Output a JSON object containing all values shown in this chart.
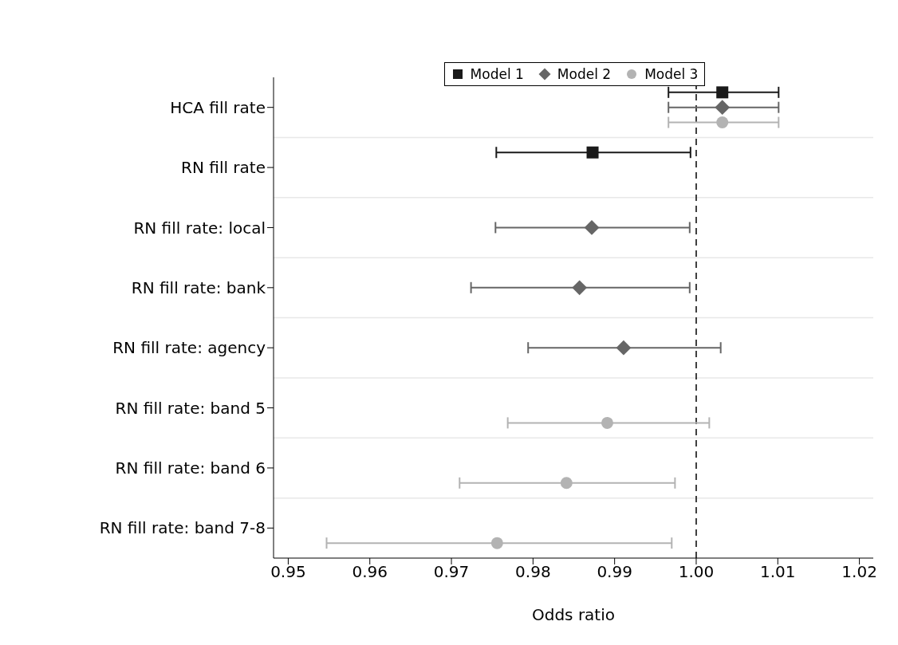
{
  "chart_data": {
    "type": "scatter",
    "orientation": "horizontal",
    "xlabel": "Odds ratio",
    "categories": [
      "HCA fill rate",
      "RN fill rate",
      "RN fill rate: local",
      "RN fill rate: bank",
      "RN fill rate: agency",
      "RN fill rate: band 5",
      "RN fill rate: band 6",
      "RN fill rate: band 7-8"
    ],
    "series": [
      {
        "name": "Model 1",
        "color": "#1a1a1a",
        "marker": "square",
        "values": [
          1.0032,
          0.9873,
          null,
          null,
          null,
          null,
          null,
          null
        ],
        "errors": [
          [
            0.9966,
            1.0101
          ],
          [
            0.9755,
            0.9993
          ],
          null,
          null,
          null,
          null,
          null,
          null
        ]
      },
      {
        "name": "Model 2",
        "color": "#666666",
        "marker": "diamond",
        "values": [
          1.0032,
          null,
          0.9872,
          0.9857,
          0.9911,
          null,
          null,
          null
        ],
        "errors": [
          [
            0.9966,
            1.0101
          ],
          null,
          [
            0.9754,
            0.9992
          ],
          [
            0.9724,
            0.9992
          ],
          [
            0.9794,
            1.003
          ],
          null,
          null,
          null
        ]
      },
      {
        "name": "Model 3",
        "color": "#b3b3b3",
        "marker": "circle",
        "values": [
          1.0032,
          null,
          null,
          null,
          null,
          0.9891,
          0.9841,
          0.9756
        ],
        "errors": [
          [
            0.9966,
            1.0101
          ],
          null,
          null,
          null,
          null,
          [
            0.9769,
            1.0016
          ],
          [
            0.971,
            0.9974
          ],
          [
            0.9547,
            0.997
          ]
        ]
      }
    ],
    "xlim": [
      0.9482,
      1.0217
    ],
    "xticks": [
      {
        "value": 0.95,
        "label": "0.95"
      },
      {
        "value": 0.96,
        "label": "0.96"
      },
      {
        "value": 0.97,
        "label": "0.97"
      },
      {
        "value": 0.98,
        "label": "0.98"
      },
      {
        "value": 0.99,
        "label": "0.99"
      },
      {
        "value": 1.0,
        "label": "1.00"
      },
      {
        "value": 1.01,
        "label": "1.01"
      },
      {
        "value": 1.02,
        "label": "1.02"
      }
    ],
    "ref_lines": [
      {
        "axis": "x",
        "value": 1.0,
        "color": "#000000",
        "line_style": "dashed"
      }
    ],
    "grid": "y",
    "legend": "top"
  }
}
